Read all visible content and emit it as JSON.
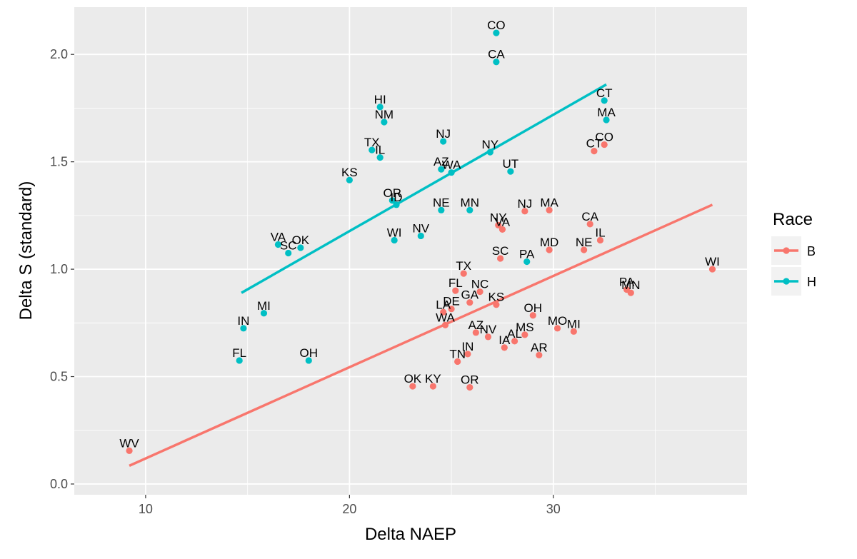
{
  "chart_data": {
    "type": "scatter",
    "xlabel": "Delta NAEP",
    "ylabel": "Delta S (standard)",
    "xlim": [
      6.5,
      39.5
    ],
    "ylim": [
      -0.05,
      2.22
    ],
    "xticks": [
      10,
      20,
      30
    ],
    "yticks": [
      0.0,
      0.5,
      1.0,
      1.5,
      2.0
    ],
    "xtick_labels": [
      "10",
      "20",
      "30"
    ],
    "ytick_labels": [
      "0.0",
      "0.5",
      "1.0",
      "1.5",
      "2.0"
    ],
    "grid": true,
    "legend": {
      "title": "Race",
      "position": "right",
      "entries": [
        {
          "name": "B",
          "color": "#F8766D"
        },
        {
          "name": "H",
          "color": "#00BFC4"
        }
      ]
    },
    "series": [
      {
        "name": "B",
        "color": "#F8766D",
        "trend": {
          "x": [
            9.2,
            37.8
          ],
          "y": [
            0.085,
            1.3
          ]
        },
        "points": [
          {
            "label": "WV",
            "x": 9.2,
            "y": 0.155
          },
          {
            "label": "OK",
            "x": 23.1,
            "y": 0.455
          },
          {
            "label": "KY",
            "x": 24.1,
            "y": 0.455
          },
          {
            "label": "OR",
            "x": 25.9,
            "y": 0.45
          },
          {
            "label": "TN",
            "x": 25.3,
            "y": 0.57
          },
          {
            "label": "IN",
            "x": 25.8,
            "y": 0.605
          },
          {
            "label": "AZ",
            "x": 26.2,
            "y": 0.705
          },
          {
            "label": "NV",
            "x": 26.8,
            "y": 0.685
          },
          {
            "label": "IA",
            "x": 27.6,
            "y": 0.635
          },
          {
            "label": "AL",
            "x": 28.1,
            "y": 0.665
          },
          {
            "label": "MS",
            "x": 28.6,
            "y": 0.695
          },
          {
            "label": "AR",
            "x": 29.3,
            "y": 0.6
          },
          {
            "label": "MO",
            "x": 30.2,
            "y": 0.725
          },
          {
            "label": "MI",
            "x": 31.0,
            "y": 0.71
          },
          {
            "label": "OH",
            "x": 29.0,
            "y": 0.785
          },
          {
            "label": "WA",
            "x": 24.7,
            "y": 0.74
          },
          {
            "label": "LA",
            "x": 24.6,
            "y": 0.8
          },
          {
            "label": "DE",
            "x": 25.0,
            "y": 0.815
          },
          {
            "label": "GA",
            "x": 25.9,
            "y": 0.845
          },
          {
            "label": "KS",
            "x": 27.2,
            "y": 0.835
          },
          {
            "label": "FL",
            "x": 25.2,
            "y": 0.9
          },
          {
            "label": "NC",
            "x": 26.4,
            "y": 0.895
          },
          {
            "label": "TX",
            "x": 25.6,
            "y": 0.98
          },
          {
            "label": "SC",
            "x": 27.4,
            "y": 1.05
          },
          {
            "label": "MD",
            "x": 29.8,
            "y": 1.09
          },
          {
            "label": "NE",
            "x": 31.5,
            "y": 1.09
          },
          {
            "label": "IL",
            "x": 32.3,
            "y": 1.135
          },
          {
            "label": "NY",
            "x": 27.3,
            "y": 1.205
          },
          {
            "label": "VA",
            "x": 27.5,
            "y": 1.185
          },
          {
            "label": "NJ",
            "x": 28.6,
            "y": 1.27
          },
          {
            "label": "MA",
            "x": 29.8,
            "y": 1.275
          },
          {
            "label": "CA",
            "x": 31.8,
            "y": 1.21
          },
          {
            "label": "CT",
            "x": 32.0,
            "y": 1.55
          },
          {
            "label": "CO",
            "x": 32.5,
            "y": 1.58
          },
          {
            "label": "PA",
            "x": 33.6,
            "y": 0.905
          },
          {
            "label": "MN",
            "x": 33.8,
            "y": 0.89
          },
          {
            "label": "WI",
            "x": 37.8,
            "y": 1.0
          }
        ]
      },
      {
        "name": "H",
        "color": "#00BFC4",
        "trend": {
          "x": [
            14.7,
            32.6
          ],
          "y": [
            0.89,
            1.86
          ]
        },
        "points": [
          {
            "label": "FL",
            "x": 14.6,
            "y": 0.575
          },
          {
            "label": "IN",
            "x": 14.8,
            "y": 0.725
          },
          {
            "label": "MI",
            "x": 15.8,
            "y": 0.795
          },
          {
            "label": "OH",
            "x": 18.0,
            "y": 0.575
          },
          {
            "label": "VA",
            "x": 16.5,
            "y": 1.115
          },
          {
            "label": "SC",
            "x": 17.0,
            "y": 1.075
          },
          {
            "label": "OK",
            "x": 17.6,
            "y": 1.1
          },
          {
            "label": "KS",
            "x": 20.0,
            "y": 1.415
          },
          {
            "label": "TX",
            "x": 21.1,
            "y": 1.555
          },
          {
            "label": "IL",
            "x": 21.5,
            "y": 1.52
          },
          {
            "label": "HI",
            "x": 21.5,
            "y": 1.755
          },
          {
            "label": "NM",
            "x": 21.7,
            "y": 1.685
          },
          {
            "label": "OR",
            "x": 22.1,
            "y": 1.32
          },
          {
            "label": "ID",
            "x": 22.3,
            "y": 1.3
          },
          {
            "label": "WI",
            "x": 22.2,
            "y": 1.135
          },
          {
            "label": "NV",
            "x": 23.5,
            "y": 1.155
          },
          {
            "label": "NJ",
            "x": 24.6,
            "y": 1.595
          },
          {
            "label": "AZ",
            "x": 24.5,
            "y": 1.465
          },
          {
            "label": "WA",
            "x": 25.0,
            "y": 1.45
          },
          {
            "label": "NE",
            "x": 24.5,
            "y": 1.275
          },
          {
            "label": "MN",
            "x": 25.9,
            "y": 1.275
          },
          {
            "label": "NY",
            "x": 26.9,
            "y": 1.545
          },
          {
            "label": "UT",
            "x": 27.9,
            "y": 1.455
          },
          {
            "label": "PA",
            "x": 28.7,
            "y": 1.035
          },
          {
            "label": "CA",
            "x": 27.2,
            "y": 1.965
          },
          {
            "label": "CO",
            "x": 27.2,
            "y": 2.1
          },
          {
            "label": "CT",
            "x": 32.5,
            "y": 1.785
          },
          {
            "label": "MA",
            "x": 32.6,
            "y": 1.695
          }
        ]
      }
    ]
  }
}
